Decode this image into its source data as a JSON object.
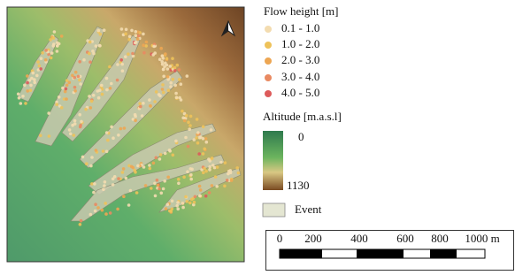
{
  "legend": {
    "flow_title": "Flow height [m]",
    "flow_classes": [
      {
        "label": "0.1 - 1.0",
        "color": "#f3dcb0"
      },
      {
        "label": "1.0 - 2.0",
        "color": "#eec25a"
      },
      {
        "label": "2.0 - 3.0",
        "color": "#eda653"
      },
      {
        "label": "3.0 - 4.0",
        "color": "#e98a62"
      },
      {
        "label": "4.0 - 5.0",
        "color": "#dd5b5b"
      }
    ],
    "altitude_title": "Altitude [m.a.s.l]",
    "altitude_low": "0",
    "altitude_high": "1130",
    "event_label": "Event"
  },
  "scale_bar": {
    "labels": [
      "0",
      "200",
      "400",
      "600",
      "800",
      "1000 m"
    ]
  }
}
